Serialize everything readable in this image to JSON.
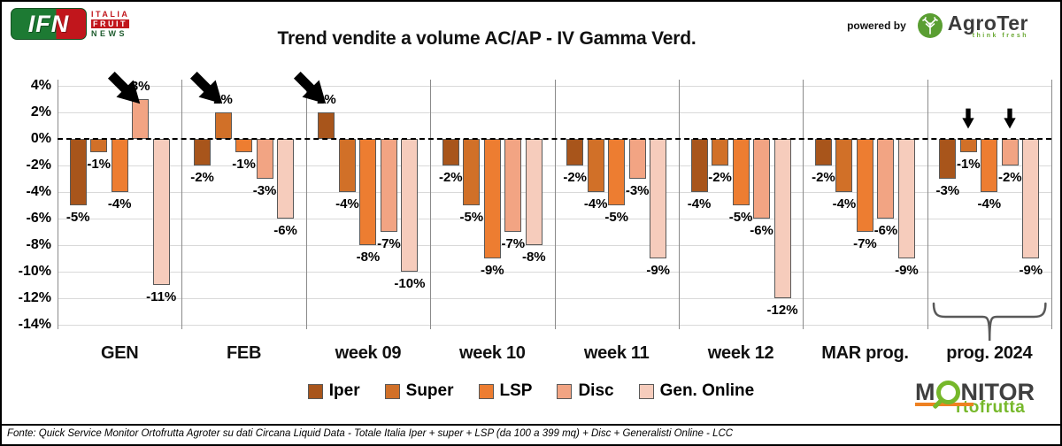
{
  "header": {
    "ifn": {
      "abbr": "IFN",
      "line1": "ITALIA",
      "line2": "FRUIT",
      "line3": "NEWS"
    },
    "powered_by": "powered by",
    "agroter": {
      "name": "AgroTer",
      "tagline": "think fresh"
    }
  },
  "chart_data": {
    "type": "bar",
    "title": "Trend vendite a volume AC/AP - IV Gamma Verd.",
    "xlabel": "",
    "ylabel": "",
    "ylim": [
      -14,
      4
    ],
    "ytick_step": 2,
    "ytick_labels": [
      "4%",
      "2%",
      "0%",
      "-2%",
      "-4%",
      "-6%",
      "-8%",
      "-10%",
      "-12%",
      "-14%"
    ],
    "grid": true,
    "zero_line": "dashed",
    "legend_position": "bottom",
    "categories": [
      "GEN",
      "FEB",
      "week 09",
      "week 10",
      "week 11",
      "week 12",
      "MAR prog.",
      "prog. 2024"
    ],
    "series": [
      {
        "name": "Iper",
        "color": "#a8551b",
        "values": [
          -5,
          -2,
          2,
          -2,
          -2,
          -4,
          -2,
          -3
        ]
      },
      {
        "name": "Super",
        "color": "#d17028",
        "values": [
          -1,
          2,
          -4,
          -5,
          -4,
          -2,
          -4,
          -1
        ]
      },
      {
        "name": "LSP",
        "color": "#ed7d31",
        "values": [
          -4,
          -1,
          -8,
          -9,
          -5,
          -5,
          -7,
          -4
        ]
      },
      {
        "name": "Disc",
        "color": "#f2a483",
        "values": [
          3,
          -3,
          -7,
          -7,
          -3,
          -6,
          -6,
          -2
        ]
      },
      {
        "name": "Gen. Online",
        "color": "#f6ccbc",
        "values": [
          -11,
          -6,
          -10,
          -8,
          -9,
          -12,
          -9,
          -9
        ]
      }
    ],
    "annotations": {
      "big_arrows": [
        {
          "category": "GEN",
          "series": "Disc"
        },
        {
          "category": "FEB",
          "series": "Super"
        },
        {
          "category": "week 09",
          "series": "Iper"
        }
      ],
      "small_arrows": [
        {
          "category": "prog. 2024",
          "series": "Super"
        },
        {
          "category": "prog. 2024",
          "series": "Disc"
        }
      ],
      "brace_under_category": "prog. 2024"
    }
  },
  "footer": {
    "source": "Fonte: Quick Service Monitor Ortofrutta Agroter su dati Circana Liquid Data - Totale Italia Iper + super + LSP (da 100 a 399 mq) + Disc + Generalisti Online - LCC"
  },
  "monitor_logo": {
    "part1": "M",
    "part2": "NITOR",
    "part3": "rtofrutta"
  }
}
